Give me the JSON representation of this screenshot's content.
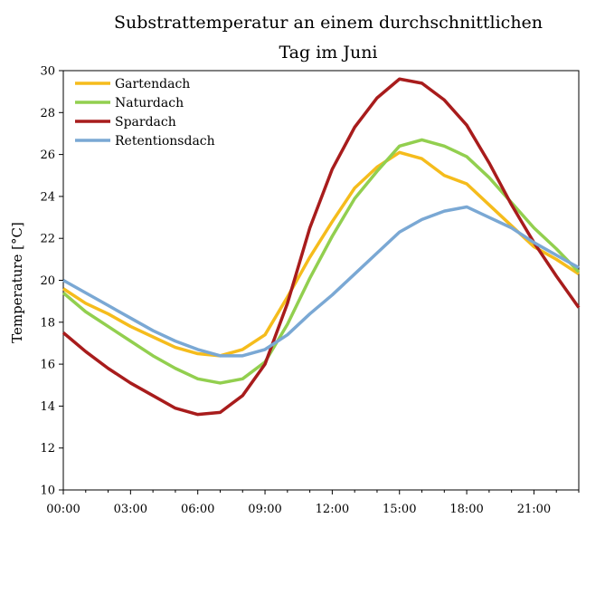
{
  "chart_data": {
    "type": "line",
    "title_lines": [
      "Substrattemperatur an einem durchschnittlichen",
      "Tag im Juni"
    ],
    "xlabel": "",
    "ylabel": "Temperature [°C]",
    "x_tick_labels": [
      "00:00",
      "03:00",
      "06:00",
      "09:00",
      "12:00",
      "15:00",
      "18:00",
      "21:00"
    ],
    "x_hours": [
      0,
      1,
      2,
      3,
      4,
      5,
      6,
      7,
      8,
      9,
      10,
      11,
      12,
      13,
      14,
      15,
      16,
      17,
      18,
      19,
      20,
      21,
      22,
      23
    ],
    "xlim": [
      0,
      23
    ],
    "ylim": [
      10,
      30
    ],
    "y_ticks": [
      10,
      12,
      14,
      16,
      18,
      20,
      22,
      24,
      26,
      28,
      30
    ],
    "grid": false,
    "legend_position": "top-left",
    "series": [
      {
        "name": "Gartendach",
        "color": "#F5BC1C",
        "values": [
          19.6,
          18.9,
          18.4,
          17.8,
          17.3,
          16.8,
          16.5,
          16.4,
          16.7,
          17.4,
          19.2,
          21.1,
          22.8,
          24.4,
          25.4,
          26.1,
          25.8,
          25.0,
          24.6,
          23.6,
          22.6,
          21.6,
          21.0,
          20.3
        ]
      },
      {
        "name": "Naturdach",
        "color": "#92CF4F",
        "values": [
          19.4,
          18.5,
          17.8,
          17.1,
          16.4,
          15.8,
          15.3,
          15.1,
          15.3,
          16.1,
          17.9,
          20.1,
          22.1,
          23.9,
          25.2,
          26.4,
          26.7,
          26.4,
          25.9,
          24.9,
          23.7,
          22.5,
          21.5,
          20.4
        ]
      },
      {
        "name": "Spardach",
        "color": "#A81C1C",
        "values": [
          17.5,
          16.6,
          15.8,
          15.1,
          14.5,
          13.9,
          13.6,
          13.7,
          14.5,
          16.0,
          18.9,
          22.5,
          25.3,
          27.3,
          28.7,
          29.6,
          29.4,
          28.6,
          27.4,
          25.6,
          23.6,
          21.8,
          20.2,
          18.7
        ]
      },
      {
        "name": "Retentionsdach",
        "color": "#7AA8D4",
        "values": [
          20.0,
          19.4,
          18.8,
          18.2,
          17.6,
          17.1,
          16.7,
          16.4,
          16.4,
          16.7,
          17.4,
          18.4,
          19.3,
          20.3,
          21.3,
          22.3,
          22.9,
          23.3,
          23.5,
          23.0,
          22.5,
          21.8,
          21.2,
          20.6
        ]
      }
    ]
  }
}
